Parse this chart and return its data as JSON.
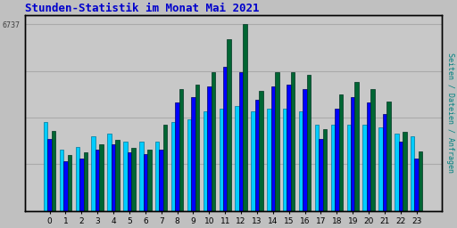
{
  "title": "Stunden-Statistik im Monat Mai 2021",
  "title_color": "#0000cc",
  "ylabel": "Seiten / Dateien / Anfragen",
  "ylabel_color": "#008080",
  "xlabel_values": [
    0,
    1,
    2,
    3,
    4,
    5,
    6,
    7,
    8,
    9,
    10,
    11,
    12,
    13,
    14,
    15,
    16,
    17,
    18,
    19,
    20,
    21,
    22,
    23
  ],
  "ytick_label": "6737",
  "ytick_color": "#404040",
  "background_color": "#c0c0c0",
  "plot_bg_color": "#c8c8c8",
  "border_color": "#000000",
  "grid_color": "#aaaaaa",
  "bar_width": 0.25,
  "cyan_bars": [
    3200,
    2200,
    2300,
    2700,
    2800,
    2500,
    2500,
    2500,
    3200,
    3300,
    3600,
    3700,
    3800,
    3600,
    3700,
    3700,
    3600,
    3100,
    3100,
    3100,
    3100,
    3000,
    2800,
    2700
  ],
  "blue_bars": [
    2600,
    1800,
    1900,
    2200,
    2400,
    2100,
    2050,
    2200,
    3900,
    4100,
    4500,
    5200,
    5000,
    4000,
    4500,
    4550,
    4400,
    2600,
    3700,
    4100,
    3900,
    3500,
    2500,
    1900
  ],
  "green_bars": [
    2900,
    2000,
    2100,
    2400,
    2550,
    2280,
    2200,
    3100,
    4400,
    4550,
    5000,
    6200,
    6737,
    4350,
    5000,
    5000,
    4900,
    2950,
    4200,
    4650,
    4400,
    3950,
    2850,
    2150
  ],
  "color_cyan": "#00ccff",
  "color_blue": "#0000ff",
  "color_green": "#006633",
  "figsize": [
    5.12,
    2.56
  ],
  "dpi": 100
}
